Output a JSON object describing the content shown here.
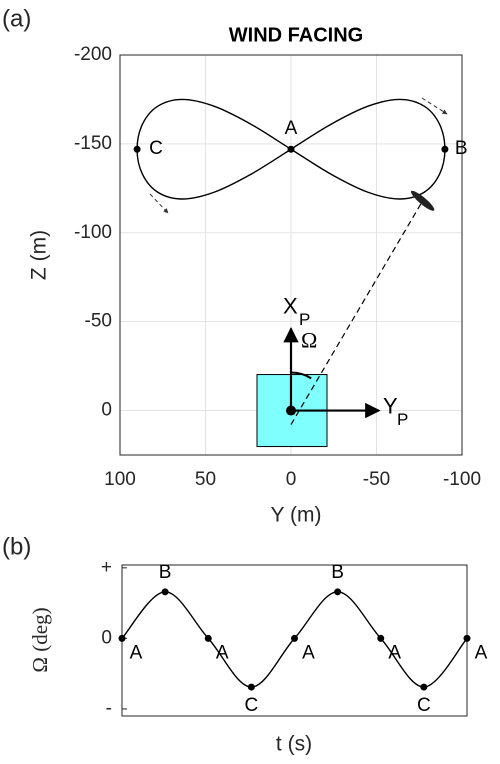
{
  "chart_data": [
    {
      "type": "line",
      "panel_label": "(a)",
      "title": "WIND FACING",
      "x_label": "Y (m)",
      "y_label": "Z (m)",
      "x": [
        0,
        -23.3,
        -45,
        -63.6,
        -77.9,
        -86.9,
        -90,
        -86.9,
        -77.9,
        -63.6,
        -45,
        -23.3,
        0,
        23.3,
        45,
        63.6,
        77.9,
        86.9,
        90,
        86.9,
        77.9,
        63.6,
        45,
        23.3,
        0
      ],
      "values": [
        -147,
        -161,
        -171.2,
        -175,
        -171.2,
        -161,
        -147,
        -133,
        -122.8,
        -119,
        -122.8,
        -133,
        -147,
        -161,
        -171.2,
        -175,
        -171.2,
        -161,
        -147,
        -133,
        -122.8,
        -119,
        -122.8,
        -133,
        -147
      ],
      "color": "#000000",
      "points": [
        {
          "label": "A",
          "x": 0,
          "y": -147
        },
        {
          "label": "B",
          "x": -90,
          "y": -147
        },
        {
          "label": "C",
          "x": 90,
          "y": -147
        }
      ],
      "kite": {
        "x": -77,
        "y": -118
      },
      "frame_labels": {
        "x": "X",
        "x_sub": "P",
        "y": "Y",
        "y_sub": "P",
        "angle": "Ω"
      },
      "xlim": [
        100,
        -100
      ],
      "xticks": [
        100,
        50,
        0,
        -50,
        -100
      ],
      "ylim": [
        25,
        -200
      ],
      "yticks": [
        -200,
        -150,
        -100,
        -50,
        0
      ],
      "grid": true
    },
    {
      "type": "line",
      "panel_label": "(b)",
      "x_label": "t (s)",
      "y_label": "Ω (deg)",
      "categories": [
        "A",
        "B",
        "A",
        "C",
        "A",
        "B",
        "A",
        "C",
        "A"
      ],
      "values": [
        0,
        0.66,
        0,
        -0.69,
        0,
        0.66,
        0,
        -0.69,
        0
      ],
      "color": "#000000",
      "ylim": [
        -1.1,
        1.04
      ],
      "yticks": [
        {
          "value": 1,
          "label": "+"
        },
        0,
        {
          "value": -1,
          "label": "-"
        }
      ],
      "grid": false
    }
  ]
}
